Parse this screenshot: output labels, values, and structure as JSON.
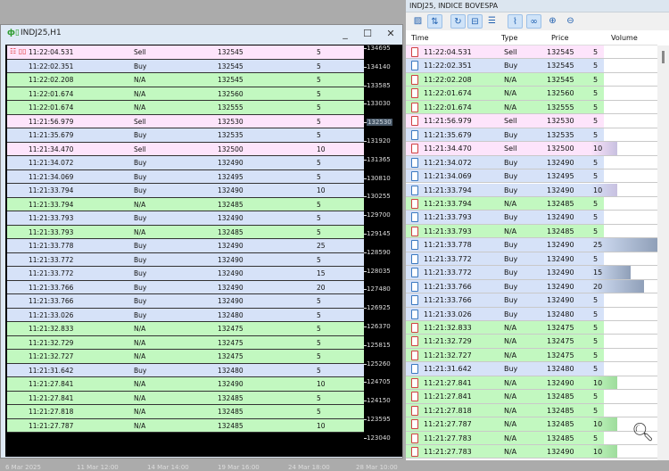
{
  "left_window": {
    "title": "INDJ25,H1",
    "minimize": "_",
    "maximize": "☐",
    "close": "✕",
    "price_axis": [
      "134695",
      "134140",
      "133585",
      "133030",
      "132530",
      "131920",
      "131365",
      "130810",
      "130255",
      "129700",
      "129145",
      "128590",
      "128035",
      "127480",
      "126925",
      "126370",
      "125815",
      "125260",
      "124705",
      "124150",
      "123595",
      "123040"
    ],
    "current_price": "132530",
    "date_axis": [
      "6 Mar 2025",
      "11 Mar 12:00",
      "14 Mar 14:00",
      "19 Mar 16:00",
      "24 Mar 18:00",
      "28 Mar 10:00"
    ]
  },
  "right_window": {
    "title": "INDJ25, INDICE BOVESPA",
    "toolbar": [
      "chart-icon",
      "buy-sell-icon",
      "refresh-icon",
      "columns-icon",
      "list-icon",
      "line-icon",
      "link-icon",
      "zoom-in-icon",
      "zoom-out-icon"
    ],
    "headers": {
      "time": "Time",
      "type": "Type",
      "price": "Price",
      "volume": "Volume"
    }
  },
  "colors": {
    "Sell": "#fde4fb",
    "Buy": "#d6e2f8",
    "N/A": "#c2f8c0"
  },
  "ticks": [
    [
      "11:22:04.531",
      "Sell",
      "132545",
      "5"
    ],
    [
      "11:22:02.351",
      "Buy",
      "132545",
      "5"
    ],
    [
      "11:22:02.208",
      "N/A",
      "132545",
      "5"
    ],
    [
      "11:22:01.674",
      "N/A",
      "132560",
      "5"
    ],
    [
      "11:22:01.674",
      "N/A",
      "132555",
      "5"
    ],
    [
      "11:21:56.979",
      "Sell",
      "132530",
      "5"
    ],
    [
      "11:21:35.679",
      "Buy",
      "132535",
      "5"
    ],
    [
      "11:21:34.470",
      "Sell",
      "132500",
      "10"
    ],
    [
      "11:21:34.072",
      "Buy",
      "132490",
      "5"
    ],
    [
      "11:21:34.069",
      "Buy",
      "132495",
      "5"
    ],
    [
      "11:21:33.794",
      "Buy",
      "132490",
      "10"
    ],
    [
      "11:21:33.794",
      "N/A",
      "132485",
      "5"
    ],
    [
      "11:21:33.793",
      "Buy",
      "132490",
      "5"
    ],
    [
      "11:21:33.793",
      "N/A",
      "132485",
      "5"
    ],
    [
      "11:21:33.778",
      "Buy",
      "132490",
      "25"
    ],
    [
      "11:21:33.772",
      "Buy",
      "132490",
      "5"
    ],
    [
      "11:21:33.772",
      "Buy",
      "132490",
      "15"
    ],
    [
      "11:21:33.766",
      "Buy",
      "132490",
      "20"
    ],
    [
      "11:21:33.766",
      "Buy",
      "132490",
      "5"
    ],
    [
      "11:21:33.026",
      "Buy",
      "132480",
      "5"
    ],
    [
      "11:21:32.833",
      "N/A",
      "132475",
      "5"
    ],
    [
      "11:21:32.729",
      "N/A",
      "132475",
      "5"
    ],
    [
      "11:21:32.727",
      "N/A",
      "132475",
      "5"
    ],
    [
      "11:21:31.642",
      "Buy",
      "132480",
      "5"
    ],
    [
      "11:21:27.841",
      "N/A",
      "132490",
      "10"
    ],
    [
      "11:21:27.841",
      "N/A",
      "132485",
      "5"
    ],
    [
      "11:21:27.818",
      "N/A",
      "132485",
      "5"
    ],
    [
      "11:21:27.787",
      "N/A",
      "132485",
      "10"
    ],
    [
      "11:21:27.783",
      "N/A",
      "132485",
      "5"
    ],
    [
      "11:21:27.783",
      "N/A",
      "132490",
      "10"
    ]
  ]
}
